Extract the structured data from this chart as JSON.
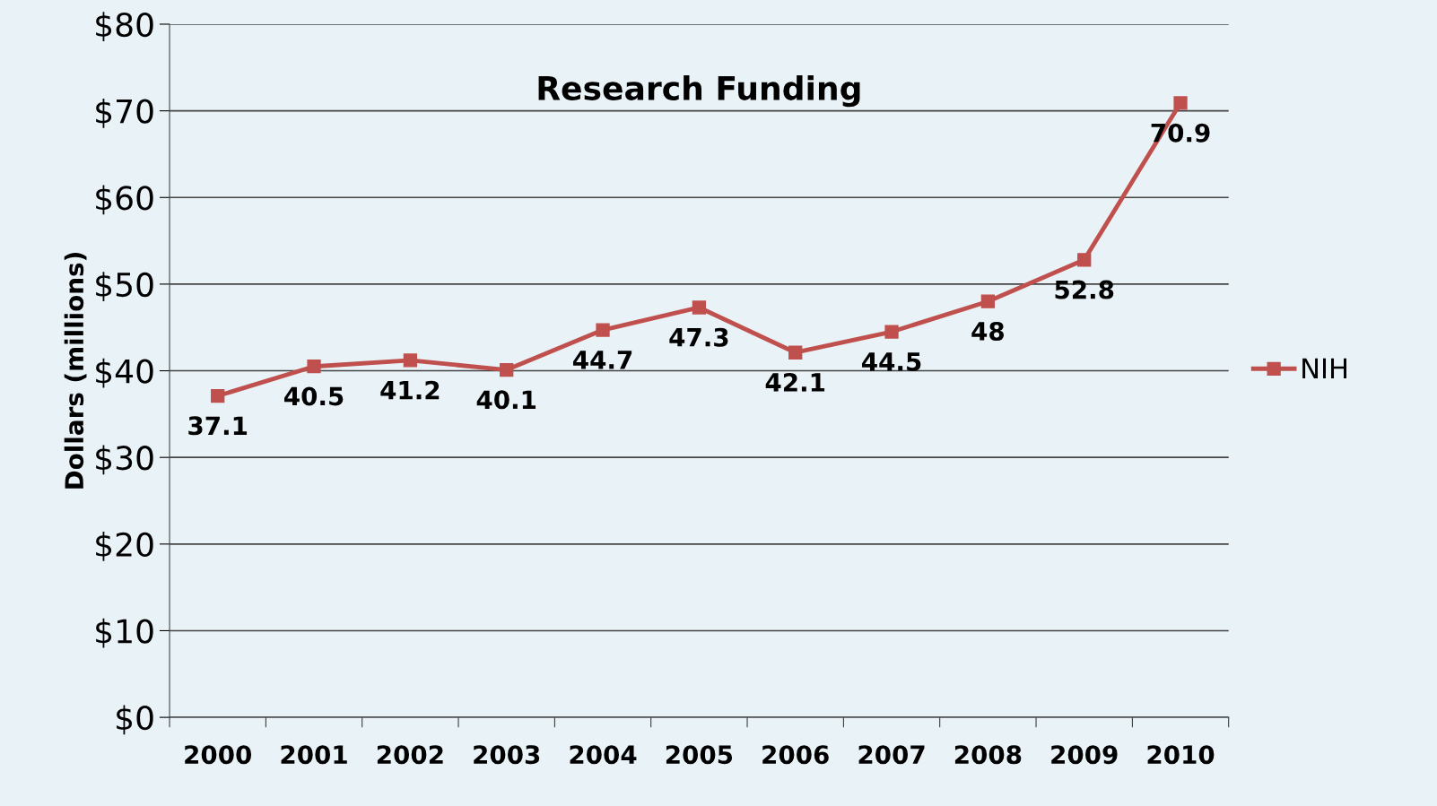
{
  "chart_data": {
    "type": "line",
    "title": "Research Funding",
    "ylabel": "Dollars (millions)",
    "categories": [
      "2000",
      "2001",
      "2002",
      "2003",
      "2004",
      "2005",
      "2006",
      "2007",
      "2008",
      "2009",
      "2010"
    ],
    "series": [
      {
        "name": "NIH",
        "color": "#c0504d",
        "values": [
          37.1,
          40.5,
          41.2,
          40.1,
          44.7,
          47.3,
          42.1,
          44.5,
          48,
          52.8,
          70.9
        ]
      }
    ],
    "ylim": [
      0,
      80
    ],
    "yticks": [
      {
        "value": 0,
        "label": "$0"
      },
      {
        "value": 10,
        "label": "$10"
      },
      {
        "value": 20,
        "label": "$20"
      },
      {
        "value": 30,
        "label": "$30"
      },
      {
        "value": 40,
        "label": "$40"
      },
      {
        "value": 50,
        "label": "$50"
      },
      {
        "value": 60,
        "label": "$60"
      },
      {
        "value": 70,
        "label": "$70"
      },
      {
        "value": 80,
        "label": "$80"
      }
    ],
    "grid": "y",
    "legend": "right",
    "marker": "square",
    "line_style": "solid",
    "data_labels": true
  }
}
